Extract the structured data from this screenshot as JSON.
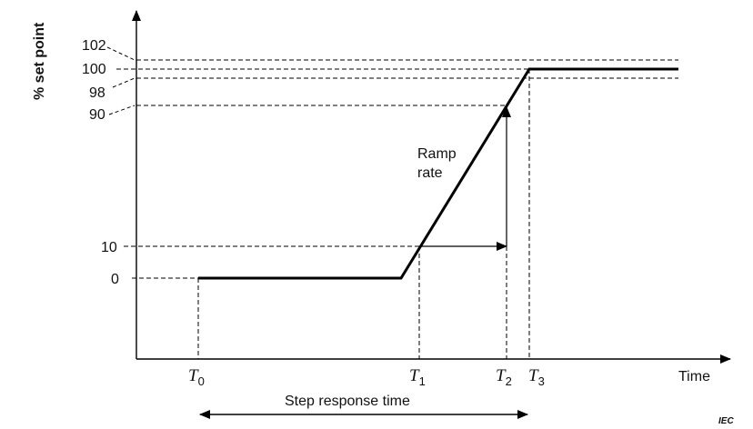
{
  "axes": {
    "ylabel": "% set point",
    "xlabel": "Time"
  },
  "y_ticks": [
    "102",
    "100",
    "98",
    "90",
    "10",
    "0"
  ],
  "time_labels": [
    {
      "name": "T",
      "sub": "0"
    },
    {
      "name": "T",
      "sub": "1"
    },
    {
      "name": "T",
      "sub": "2"
    },
    {
      "name": "T",
      "sub": "3"
    }
  ],
  "annotations": {
    "ramp_line1": "Ramp",
    "ramp_line2": "rate",
    "step_response": "Step response time"
  },
  "footer": {
    "tag": "IEC"
  },
  "colors": {
    "line": "#000000",
    "background": "#ffffff"
  }
}
